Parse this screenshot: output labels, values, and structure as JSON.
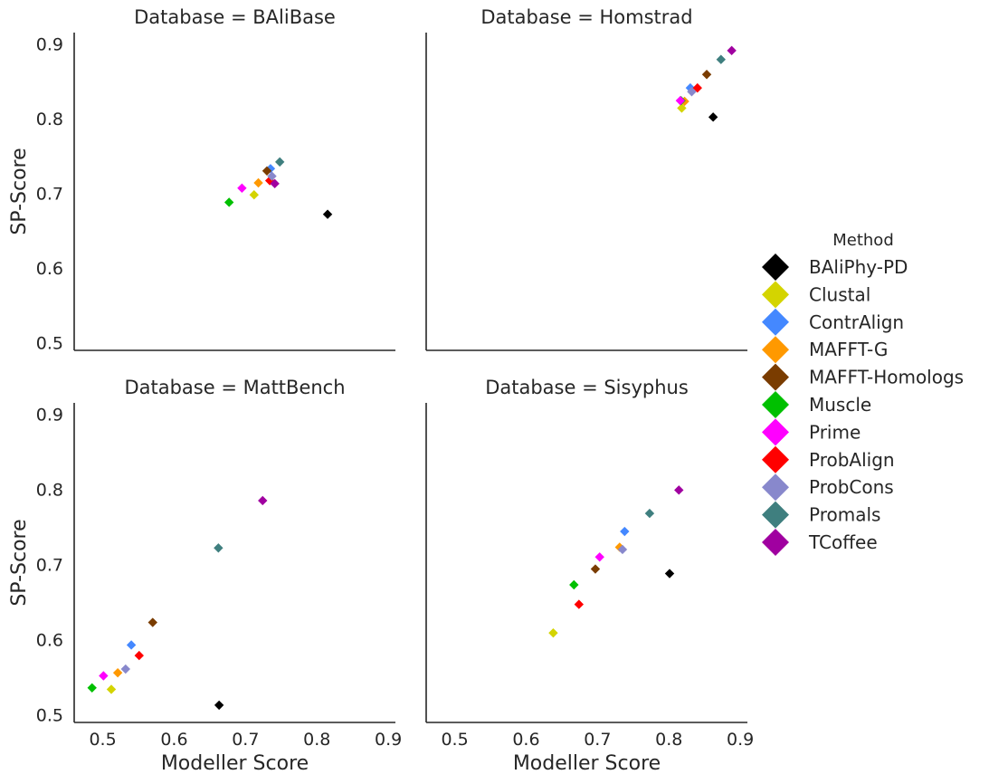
{
  "chart_data": {
    "type": "scatter",
    "x_label": "Modeller Score",
    "y_label": "SP-Score",
    "xlim": [
      0.46,
      0.91
    ],
    "ylim": [
      0.49,
      0.915
    ],
    "x_ticks": [
      0.5,
      0.6,
      0.7,
      0.8,
      0.9
    ],
    "x_tick_labels": [
      "0.5",
      "0.6",
      "0.7",
      "0.8",
      "0.9"
    ],
    "y_ticks": [
      0.5,
      0.6,
      0.7,
      0.8,
      0.9
    ],
    "y_tick_labels": [
      "0.5",
      "0.6",
      "0.7",
      "0.8",
      "0.9"
    ],
    "grid": false,
    "legend": {
      "title": "Method",
      "position": "right",
      "entries": [
        {
          "label": "BAliPhy-PD",
          "color": "#000000"
        },
        {
          "label": "Clustal",
          "color": "#d4d400"
        },
        {
          "label": "ContrAlign",
          "color": "#4488ff"
        },
        {
          "label": "MAFFT-G",
          "color": "#ff9900"
        },
        {
          "label": "MAFFT-Homologs",
          "color": "#7a3c00"
        },
        {
          "label": "Muscle",
          "color": "#00c000"
        },
        {
          "label": "Prime",
          "color": "#ff00ff"
        },
        {
          "label": "ProbAlign",
          "color": "#ff0000"
        },
        {
          "label": "ProbCons",
          "color": "#8888cc"
        },
        {
          "label": "Promals",
          "color": "#3f7f7f"
        },
        {
          "label": "TCoffee",
          "color": "#a000a0"
        }
      ]
    },
    "facets": [
      {
        "title": "Database = BAliBase",
        "points": [
          {
            "method": "BAliPhy-PD",
            "x": 0.815,
            "y": 0.672
          },
          {
            "method": "Clustal",
            "x": 0.712,
            "y": 0.698
          },
          {
            "method": "ContrAlign",
            "x": 0.735,
            "y": 0.733
          },
          {
            "method": "MAFFT-G",
            "x": 0.718,
            "y": 0.714
          },
          {
            "method": "MAFFT-Homologs",
            "x": 0.73,
            "y": 0.73
          },
          {
            "method": "Muscle",
            "x": 0.677,
            "y": 0.688
          },
          {
            "method": "Prime",
            "x": 0.695,
            "y": 0.707
          },
          {
            "method": "ProbAlign",
            "x": 0.734,
            "y": 0.717
          },
          {
            "method": "ProbCons",
            "x": 0.737,
            "y": 0.723
          },
          {
            "method": "Promals",
            "x": 0.748,
            "y": 0.742
          },
          {
            "method": "TCoffee",
            "x": 0.741,
            "y": 0.713
          }
        ]
      },
      {
        "title": "Database = Homstrad",
        "points": [
          {
            "method": "BAliPhy-PD",
            "x": 0.862,
            "y": 0.802
          },
          {
            "method": "Clustal",
            "x": 0.818,
            "y": 0.814
          },
          {
            "method": "ContrAlign",
            "x": 0.83,
            "y": 0.841
          },
          {
            "method": "MAFFT-G",
            "x": 0.822,
            "y": 0.823
          },
          {
            "method": "MAFFT-Homologs",
            "x": 0.853,
            "y": 0.859
          },
          {
            "method": "Muscle",
            "x": 0.817,
            "y": 0.824
          },
          {
            "method": "Prime",
            "x": 0.816,
            "y": 0.824
          },
          {
            "method": "ProbAlign",
            "x": 0.84,
            "y": 0.841
          },
          {
            "method": "ProbCons",
            "x": 0.832,
            "y": 0.836
          },
          {
            "method": "Promals",
            "x": 0.873,
            "y": 0.879
          },
          {
            "method": "TCoffee",
            "x": 0.888,
            "y": 0.891
          }
        ]
      },
      {
        "title": "Database = MattBench",
        "points": [
          {
            "method": "BAliPhy-PD",
            "x": 0.663,
            "y": 0.513
          },
          {
            "method": "Clustal",
            "x": 0.512,
            "y": 0.534
          },
          {
            "method": "ContrAlign",
            "x": 0.54,
            "y": 0.593
          },
          {
            "method": "MAFFT-G",
            "x": 0.521,
            "y": 0.556
          },
          {
            "method": "MAFFT-Homologs",
            "x": 0.57,
            "y": 0.623
          },
          {
            "method": "Muscle",
            "x": 0.485,
            "y": 0.536
          },
          {
            "method": "Prime",
            "x": 0.501,
            "y": 0.552
          },
          {
            "method": "ProbAlign",
            "x": 0.551,
            "y": 0.579
          },
          {
            "method": "ProbCons",
            "x": 0.532,
            "y": 0.561
          },
          {
            "method": "Promals",
            "x": 0.662,
            "y": 0.722
          },
          {
            "method": "TCoffee",
            "x": 0.724,
            "y": 0.785
          }
        ]
      },
      {
        "title": "Database = Sisyphus",
        "points": [
          {
            "method": "BAliPhy-PD",
            "x": 0.801,
            "y": 0.688
          },
          {
            "method": "Clustal",
            "x": 0.638,
            "y": 0.609
          },
          {
            "method": "ContrAlign",
            "x": 0.738,
            "y": 0.744
          },
          {
            "method": "MAFFT-G",
            "x": 0.731,
            "y": 0.723
          },
          {
            "method": "MAFFT-Homologs",
            "x": 0.697,
            "y": 0.694
          },
          {
            "method": "Muscle",
            "x": 0.667,
            "y": 0.673
          },
          {
            "method": "Prime",
            "x": 0.703,
            "y": 0.71
          },
          {
            "method": "ProbAlign",
            "x": 0.674,
            "y": 0.647
          },
          {
            "method": "ProbCons",
            "x": 0.735,
            "y": 0.72
          },
          {
            "method": "Promals",
            "x": 0.773,
            "y": 0.768
          },
          {
            "method": "TCoffee",
            "x": 0.814,
            "y": 0.799
          }
        ]
      }
    ]
  }
}
